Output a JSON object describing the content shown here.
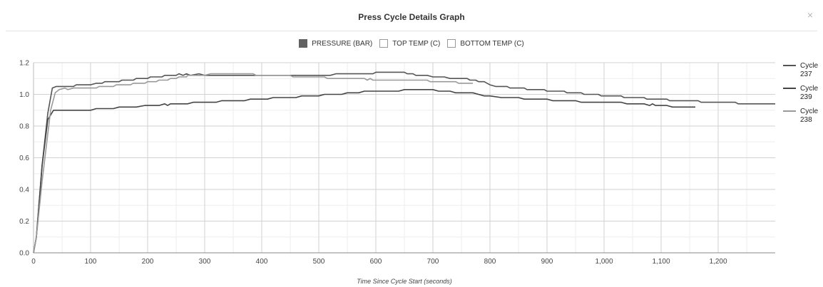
{
  "modal": {
    "title": "Press Cycle Details Graph",
    "close_label": "×"
  },
  "legend_top": [
    {
      "label": "PRESSURE (BAR)",
      "filled": true,
      "color": "#616161"
    },
    {
      "label": "TOP TEMP (C)",
      "filled": false,
      "color": "#ffffff"
    },
    {
      "label": "BOTTOM TEMP (C)",
      "filled": false,
      "color": "#ffffff"
    }
  ],
  "chart_data": {
    "type": "line",
    "title": "Press Cycle Details Graph",
    "xlabel": "Time Since Cycle Start (seconds)",
    "ylabel": "",
    "xlim": [
      0,
      1300
    ],
    "ylim": [
      0,
      1.2
    ],
    "x_ticks": [
      0,
      100,
      200,
      300,
      400,
      500,
      600,
      700,
      800,
      900,
      1000,
      1100,
      1200
    ],
    "x_tick_labels": [
      "0",
      "100",
      "200",
      "300",
      "400",
      "500",
      "600",
      "700",
      "800",
      "900",
      "1,000",
      "1,100",
      "1,200"
    ],
    "y_ticks": [
      0,
      0.2,
      0.4,
      0.6,
      0.8,
      1.0,
      1.2
    ],
    "y_tick_labels": [
      "0.0",
      "0.2",
      "0.4",
      "0.6",
      "0.8",
      "1.0",
      "1.2"
    ],
    "grid": true,
    "legend_placement": "right",
    "series": [
      {
        "name": "Cycle 237",
        "color": "#555555",
        "points": [
          [
            0,
            0
          ],
          [
            5,
            0.1
          ],
          [
            15,
            0.55
          ],
          [
            25,
            0.88
          ],
          [
            33,
            1.04
          ],
          [
            40,
            1.05
          ],
          [
            70,
            1.05
          ],
          [
            75,
            1.06
          ],
          [
            100,
            1.06
          ],
          [
            110,
            1.07
          ],
          [
            120,
            1.07
          ],
          [
            125,
            1.08
          ],
          [
            150,
            1.08
          ],
          [
            155,
            1.09
          ],
          [
            175,
            1.09
          ],
          [
            180,
            1.1
          ],
          [
            200,
            1.1
          ],
          [
            205,
            1.11
          ],
          [
            225,
            1.11
          ],
          [
            230,
            1.12
          ],
          [
            250,
            1.12
          ],
          [
            255,
            1.13
          ],
          [
            262,
            1.12
          ],
          [
            268,
            1.13
          ],
          [
            275,
            1.12
          ],
          [
            290,
            1.13
          ],
          [
            300,
            1.12
          ],
          [
            450,
            1.12
          ],
          [
            520,
            1.12
          ],
          [
            530,
            1.13
          ],
          [
            595,
            1.13
          ],
          [
            600,
            1.14
          ],
          [
            620,
            1.14
          ],
          [
            625,
            1.14
          ],
          [
            650,
            1.14
          ],
          [
            655,
            1.13
          ],
          [
            665,
            1.13
          ],
          [
            670,
            1.12
          ],
          [
            690,
            1.12
          ],
          [
            700,
            1.11
          ],
          [
            720,
            1.11
          ],
          [
            730,
            1.1
          ],
          [
            760,
            1.1
          ],
          [
            765,
            1.09
          ],
          [
            775,
            1.09
          ],
          [
            780,
            1.08
          ],
          [
            790,
            1.08
          ],
          [
            795,
            1.07
          ],
          [
            800,
            1.06
          ],
          [
            810,
            1.05
          ],
          [
            830,
            1.05
          ],
          [
            835,
            1.04
          ],
          [
            860,
            1.04
          ],
          [
            865,
            1.03
          ],
          [
            895,
            1.03
          ],
          [
            900,
            1.02
          ],
          [
            930,
            1.02
          ],
          [
            935,
            1.01
          ],
          [
            960,
            1.01
          ],
          [
            965,
            1.0
          ],
          [
            990,
            1.0
          ],
          [
            995,
            0.99
          ],
          [
            1030,
            0.99
          ],
          [
            1035,
            0.98
          ],
          [
            1070,
            0.98
          ],
          [
            1075,
            0.97
          ],
          [
            1110,
            0.97
          ],
          [
            1115,
            0.96
          ],
          [
            1165,
            0.96
          ],
          [
            1170,
            0.95
          ],
          [
            1230,
            0.95
          ],
          [
            1235,
            0.94
          ],
          [
            1300,
            0.94
          ]
        ]
      },
      {
        "name": "Cycle 239",
        "color": "#444444",
        "points": [
          [
            0,
            0
          ],
          [
            5,
            0.1
          ],
          [
            15,
            0.55
          ],
          [
            25,
            0.84
          ],
          [
            35,
            0.9
          ],
          [
            40,
            0.9
          ],
          [
            100,
            0.9
          ],
          [
            110,
            0.91
          ],
          [
            140,
            0.91
          ],
          [
            150,
            0.92
          ],
          [
            180,
            0.92
          ],
          [
            195,
            0.93
          ],
          [
            220,
            0.93
          ],
          [
            230,
            0.94
          ],
          [
            235,
            0.93
          ],
          [
            240,
            0.94
          ],
          [
            270,
            0.94
          ],
          [
            280,
            0.95
          ],
          [
            320,
            0.95
          ],
          [
            330,
            0.96
          ],
          [
            370,
            0.96
          ],
          [
            380,
            0.97
          ],
          [
            410,
            0.97
          ],
          [
            420,
            0.98
          ],
          [
            460,
            0.98
          ],
          [
            470,
            0.99
          ],
          [
            500,
            0.99
          ],
          [
            510,
            1.0
          ],
          [
            540,
            1.0
          ],
          [
            550,
            1.01
          ],
          [
            570,
            1.01
          ],
          [
            580,
            1.02
          ],
          [
            640,
            1.02
          ],
          [
            650,
            1.03
          ],
          [
            700,
            1.03
          ],
          [
            710,
            1.02
          ],
          [
            730,
            1.02
          ],
          [
            740,
            1.01
          ],
          [
            770,
            1.01
          ],
          [
            780,
            1.0
          ],
          [
            790,
            0.99
          ],
          [
            800,
            0.99
          ],
          [
            820,
            0.98
          ],
          [
            850,
            0.98
          ],
          [
            860,
            0.97
          ],
          [
            900,
            0.97
          ],
          [
            910,
            0.96
          ],
          [
            950,
            0.96
          ],
          [
            960,
            0.95
          ],
          [
            1030,
            0.95
          ],
          [
            1040,
            0.94
          ],
          [
            1070,
            0.94
          ],
          [
            1080,
            0.93
          ],
          [
            1085,
            0.94
          ],
          [
            1090,
            0.93
          ],
          [
            1110,
            0.93
          ],
          [
            1120,
            0.92
          ],
          [
            1160,
            0.92
          ]
        ]
      },
      {
        "name": "Cycle 238",
        "color": "#999999",
        "points": [
          [
            0,
            0
          ],
          [
            5,
            0.1
          ],
          [
            15,
            0.45
          ],
          [
            30,
            0.9
          ],
          [
            38,
            1.01
          ],
          [
            45,
            1.03
          ],
          [
            55,
            1.04
          ],
          [
            60,
            1.03
          ],
          [
            70,
            1.04
          ],
          [
            110,
            1.04
          ],
          [
            115,
            1.05
          ],
          [
            140,
            1.05
          ],
          [
            145,
            1.06
          ],
          [
            170,
            1.06
          ],
          [
            175,
            1.07
          ],
          [
            195,
            1.07
          ],
          [
            200,
            1.08
          ],
          [
            215,
            1.08
          ],
          [
            220,
            1.09
          ],
          [
            235,
            1.09
          ],
          [
            240,
            1.1
          ],
          [
            250,
            1.1
          ],
          [
            255,
            1.11
          ],
          [
            268,
            1.11
          ],
          [
            270,
            1.12
          ],
          [
            300,
            1.12
          ],
          [
            310,
            1.13
          ],
          [
            385,
            1.13
          ],
          [
            390,
            1.12
          ],
          [
            450,
            1.12
          ],
          [
            455,
            1.11
          ],
          [
            510,
            1.11
          ],
          [
            515,
            1.1
          ],
          [
            580,
            1.1
          ],
          [
            585,
            1.09
          ],
          [
            590,
            1.1
          ],
          [
            595,
            1.09
          ],
          [
            690,
            1.09
          ],
          [
            695,
            1.08
          ],
          [
            740,
            1.08
          ],
          [
            745,
            1.07
          ],
          [
            770,
            1.07
          ]
        ]
      }
    ]
  }
}
